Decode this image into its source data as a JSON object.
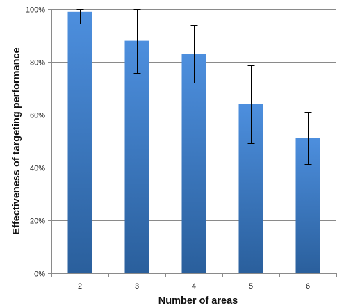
{
  "chart_data": {
    "type": "bar",
    "title": "",
    "xlabel": "Number of areas",
    "ylabel": "Effectiveness of targeting performance",
    "categories": [
      "2",
      "3",
      "4",
      "5",
      "6"
    ],
    "series": [
      {
        "values": [
          0.99,
          0.88,
          0.83,
          0.64,
          0.513
        ],
        "error_upper": [
          1.0,
          1.0,
          0.94,
          0.787,
          0.61
        ],
        "error_lower": [
          0.945,
          0.757,
          0.722,
          0.493,
          0.414
        ]
      }
    ],
    "ylim": [
      0,
      1
    ],
    "yticks": [
      0,
      0.2,
      0.4,
      0.6,
      0.8,
      1.0
    ],
    "ytick_labels": [
      "0%",
      "20%",
      "40%",
      "60%",
      "80%",
      "100%"
    ],
    "grid": "horizontal",
    "legend": "none",
    "colors": {
      "bar_light": "#4d8fde",
      "bar_dark": "#2a5f9c",
      "error": "#000000",
      "grid": "#8a8a8a"
    }
  }
}
